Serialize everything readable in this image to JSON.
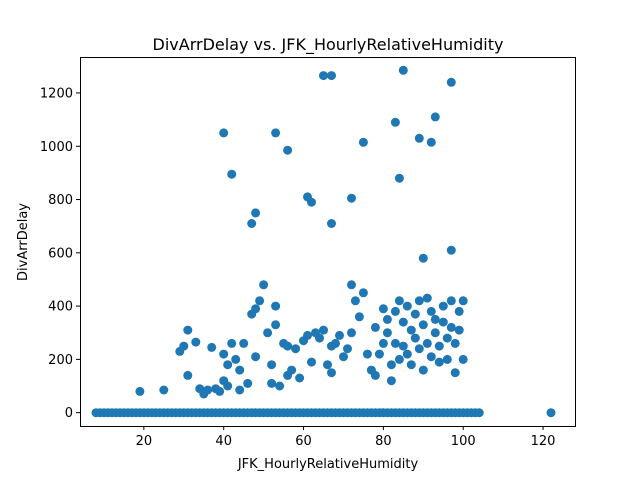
{
  "chart_data": {
    "type": "scatter",
    "title": "DivArrDelay vs. JFK_HourlyRelativeHumidity",
    "xlabel": "JFK_HourlyRelativeHumidity",
    "ylabel": "DivArrDelay",
    "xlim": [
      4,
      128
    ],
    "ylim": [
      -50,
      1335
    ],
    "xticks": [
      20,
      40,
      60,
      80,
      100,
      120
    ],
    "yticks": [
      0,
      200,
      400,
      600,
      800,
      1000,
      1200
    ],
    "grid": false,
    "legend": "none",
    "marker_color": "#1f77b4",
    "x": [
      8,
      9,
      10,
      11,
      12,
      13,
      14,
      15,
      16,
      17,
      18,
      19,
      20,
      21,
      22,
      23,
      24,
      25,
      26,
      27,
      28,
      29,
      30,
      31,
      32,
      33,
      34,
      35,
      36,
      37,
      38,
      39,
      40,
      41,
      42,
      43,
      44,
      45,
      46,
      47,
      48,
      49,
      50,
      51,
      52,
      53,
      54,
      55,
      56,
      57,
      58,
      59,
      60,
      61,
      62,
      63,
      64,
      65,
      66,
      67,
      68,
      69,
      70,
      71,
      72,
      73,
      74,
      75,
      76,
      77,
      78,
      79,
      80,
      81,
      82,
      83,
      84,
      85,
      86,
      87,
      88,
      89,
      90,
      91,
      92,
      93,
      94,
      95,
      96,
      97,
      98,
      99,
      100,
      101,
      102,
      103,
      104,
      122,
      19,
      25,
      29,
      30,
      31,
      31,
      33,
      34,
      35,
      36,
      37,
      38,
      39,
      40,
      40,
      41,
      41,
      42,
      43,
      44,
      44,
      45,
      46,
      47,
      48,
      48,
      49,
      50,
      51,
      52,
      52,
      53,
      53,
      54,
      55,
      56,
      56,
      57,
      58,
      59,
      60,
      61,
      62,
      63,
      64,
      65,
      66,
      67,
      67,
      68,
      69,
      70,
      71,
      72,
      72,
      73,
      74,
      75,
      76,
      77,
      78,
      78,
      79,
      80,
      80,
      81,
      81,
      82,
      82,
      83,
      83,
      84,
      84,
      85,
      85,
      86,
      86,
      87,
      87,
      88,
      88,
      89,
      89,
      90,
      90,
      91,
      91,
      92,
      92,
      93,
      93,
      94,
      94,
      95,
      95,
      96,
      96,
      97,
      97,
      98,
      98,
      99,
      99,
      100,
      100,
      40,
      42,
      47,
      48,
      53,
      56,
      61,
      62,
      65,
      67,
      67,
      72,
      75,
      83,
      84,
      85,
      89,
      92,
      93,
      97,
      90,
      97
    ],
    "y": [
      0,
      0,
      0,
      0,
      0,
      0,
      0,
      0,
      0,
      0,
      0,
      0,
      0,
      0,
      0,
      0,
      0,
      0,
      0,
      0,
      0,
      0,
      0,
      0,
      0,
      0,
      0,
      0,
      0,
      0,
      0,
      0,
      0,
      0,
      0,
      0,
      0,
      0,
      0,
      0,
      0,
      0,
      0,
      0,
      0,
      0,
      0,
      0,
      0,
      0,
      0,
      0,
      0,
      0,
      0,
      0,
      0,
      0,
      0,
      0,
      0,
      0,
      0,
      0,
      0,
      0,
      0,
      0,
      0,
      0,
      0,
      0,
      0,
      0,
      0,
      0,
      0,
      0,
      0,
      0,
      0,
      0,
      0,
      0,
      0,
      0,
      0,
      0,
      0,
      0,
      0,
      0,
      0,
      0,
      0,
      0,
      0,
      0,
      80,
      85,
      230,
      250,
      310,
      140,
      265,
      90,
      70,
      85,
      245,
      90,
      80,
      120,
      220,
      180,
      100,
      260,
      200,
      85,
      160,
      260,
      110,
      370,
      210,
      390,
      420,
      480,
      300,
      180,
      110,
      400,
      330,
      100,
      260,
      250,
      140,
      160,
      240,
      130,
      270,
      290,
      190,
      300,
      280,
      310,
      180,
      150,
      250,
      260,
      290,
      210,
      240,
      300,
      480,
      420,
      360,
      450,
      220,
      160,
      140,
      320,
      220,
      260,
      390,
      350,
      300,
      180,
      120,
      380,
      260,
      420,
      200,
      340,
      250,
      400,
      220,
      310,
      180,
      370,
      280,
      420,
      240,
      330,
      160,
      430,
      260,
      380,
      210,
      350,
      300,
      250,
      190,
      400,
      340,
      280,
      200,
      420,
      320,
      260,
      150,
      380,
      310,
      420,
      200,
      1050,
      895,
      710,
      750,
      1050,
      985,
      810,
      790,
      1265,
      1265,
      710,
      805,
      1015,
      1090,
      880,
      1285,
      1030,
      1015,
      1110,
      1240,
      580,
      610
    ]
  }
}
